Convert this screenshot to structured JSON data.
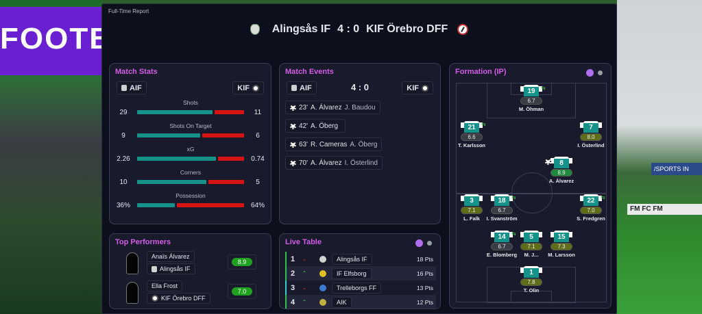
{
  "background": {
    "banner_text": "FOOTB",
    "ad_text": "/SPORTS IN",
    "ad2_text": "FM FC FM"
  },
  "window_title": "Full-Time Report",
  "header": {
    "home": "Alingsås IF",
    "score": "4 : 0",
    "away": "KIF Örebro DFF"
  },
  "teams": {
    "home_short": "AIF",
    "away_short": "KIF"
  },
  "match_stats": {
    "title": "Match Stats",
    "stats": [
      {
        "label": "Shots",
        "home": "29",
        "away": "11",
        "home_share": 72
      },
      {
        "label": "Shots On Target",
        "home": "9",
        "away": "6",
        "home_share": 60
      },
      {
        "label": "xG",
        "home": "2.26",
        "away": "0.74",
        "home_share": 75
      },
      {
        "label": "Corners",
        "home": "10",
        "away": "5",
        "home_share": 66
      },
      {
        "label": "Possession",
        "home": "36%",
        "away": "64%",
        "home_share": 36
      }
    ]
  },
  "match_events": {
    "title": "Match Events",
    "score": "4 : 0",
    "events": [
      {
        "minute": "23'",
        "scorer": "A. Álvarez",
        "assist": "J. Baudou"
      },
      {
        "minute": "42'",
        "scorer": "A. Öberg",
        "assist": ""
      },
      {
        "minute": "63'",
        "scorer": "R. Cameras",
        "assist": "A. Öberg"
      },
      {
        "minute": "70'",
        "scorer": "A. Álvarez",
        "assist": "I. Österlind"
      }
    ]
  },
  "formation": {
    "title": "Formation (IP)",
    "players": [
      {
        "number": "19",
        "rating": "6.7",
        "name": "M. Öhman"
      },
      {
        "number": "21",
        "rating": "6.6",
        "name": "T. Karlsson"
      },
      {
        "number": "7",
        "rating": "8.0",
        "name": "I. Österlind"
      },
      {
        "number": "8",
        "rating": "8.9",
        "name": "A. Álvarez"
      },
      {
        "number": "3",
        "rating": "7.1",
        "name": "L. Falk"
      },
      {
        "number": "18",
        "rating": "6.7",
        "name": "I. Svanström"
      },
      {
        "number": "22",
        "rating": "7.0",
        "name": "S. Fredgren"
      },
      {
        "number": "14",
        "rating": "6.7",
        "name": "E. Blomberg"
      },
      {
        "number": "5",
        "rating": "7.1",
        "name": "M. J..."
      },
      {
        "number": "15",
        "rating": "7.3",
        "name": "M. Larsson"
      },
      {
        "number": "1",
        "rating": "7.8",
        "name": "T. Olin"
      }
    ],
    "sub_icon": "⇆"
  },
  "top_performers": {
    "title": "Top Performers",
    "players": [
      {
        "name": "Anaïs Álvarez",
        "team": "Alingsås IF",
        "rating": "8.9"
      },
      {
        "name": "Ella Frost",
        "team": "KIF Örebro DFF",
        "rating": "7.0"
      }
    ]
  },
  "live_table": {
    "title": "Live Table",
    "rows": [
      {
        "pos": "1",
        "trend": "down",
        "arrow": "⌄",
        "team": "Alingsås IF",
        "pts": "18 Pts"
      },
      {
        "pos": "2",
        "trend": "up",
        "arrow": "⌃",
        "team": "IF Elfsborg",
        "pts": "16 Pts"
      },
      {
        "pos": "3",
        "trend": "down",
        "arrow": "⌄",
        "team": "Trelleborgs FF",
        "pts": "13 Pts"
      },
      {
        "pos": "4",
        "trend": "up",
        "arrow": "⌃",
        "team": "AIK",
        "pts": "12 Pts"
      }
    ]
  },
  "colors": {
    "home": "#15928a",
    "away": "#d61414",
    "accent": "#d35ce6"
  }
}
